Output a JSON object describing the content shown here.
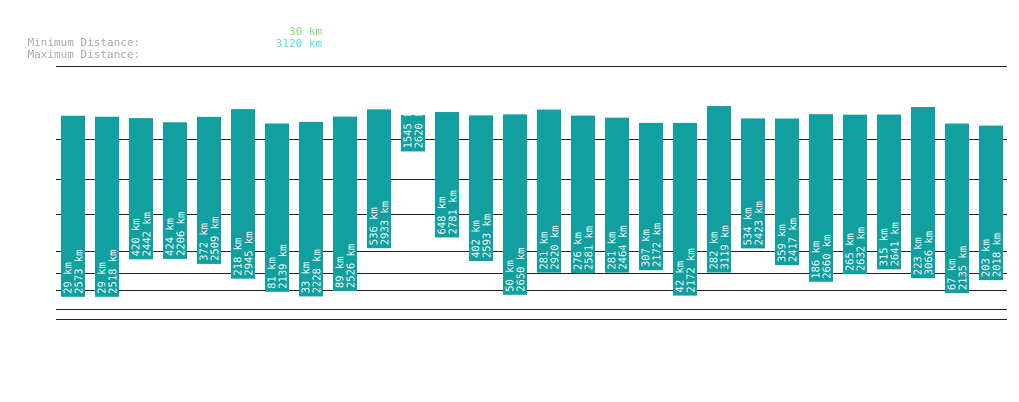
{
  "stats": {
    "min_label": "Minimum Distance:",
    "min_value": "30 km",
    "max_label": "Maximum Distance:",
    "max_value": "3120 km"
  },
  "colors": {
    "bar": "#129f9f",
    "bar_text": "#ffffff",
    "min_value": "#7cd97c",
    "max_value": "#55dddd"
  },
  "chart_data": {
    "type": "bar",
    "unit": "km",
    "ranges": [
      {
        "min": 29,
        "max": 2573
      },
      {
        "min": 29,
        "max": 2518
      },
      {
        "min": 420,
        "max": 2442
      },
      {
        "min": 424,
        "max": 2206
      },
      {
        "min": 372,
        "max": 2509
      },
      {
        "min": 218,
        "max": 2945
      },
      {
        "min": 81,
        "max": 2139
      },
      {
        "min": 33,
        "max": 2228
      },
      {
        "min": 89,
        "max": 2526
      },
      {
        "min": 536,
        "max": 2933
      },
      {
        "min": 1545,
        "max": 2620
      },
      {
        "min": 648,
        "max": 2781
      },
      {
        "min": 402,
        "max": 2593
      },
      {
        "min": 50,
        "max": 2650
      },
      {
        "min": 281,
        "max": 2920
      },
      {
        "min": 276,
        "max": 2581
      },
      {
        "min": 281,
        "max": 2464
      },
      {
        "min": 307,
        "max": 2172
      },
      {
        "min": 42,
        "max": 2172
      },
      {
        "min": 282,
        "max": 3119
      },
      {
        "min": 534,
        "max": 2423
      },
      {
        "min": 359,
        "max": 2417
      },
      {
        "min": 186,
        "max": 2660
      },
      {
        "min": 265,
        "max": 2632
      },
      {
        "min": 315,
        "max": 2641
      },
      {
        "min": 223,
        "max": 3066
      },
      {
        "min": 67,
        "max": 2135
      },
      {
        "min": 203,
        "max": 2018
      }
    ]
  }
}
